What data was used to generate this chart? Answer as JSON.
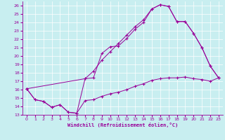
{
  "xlabel": "Windchill (Refroidissement éolien,°C)",
  "bg_color": "#c8eef0",
  "line_color": "#990099",
  "xlim": [
    -0.5,
    23.5
  ],
  "ylim": [
    13,
    26.5
  ],
  "xticks": [
    0,
    1,
    2,
    3,
    4,
    5,
    6,
    7,
    8,
    9,
    10,
    11,
    12,
    13,
    14,
    15,
    16,
    17,
    18,
    19,
    20,
    21,
    22,
    23
  ],
  "yticks": [
    13,
    14,
    15,
    16,
    17,
    18,
    19,
    20,
    21,
    22,
    23,
    24,
    25,
    26
  ],
  "line1_x": [
    0,
    1,
    2,
    3,
    4,
    5,
    6,
    7,
    8,
    9,
    10,
    11,
    12,
    13,
    14,
    15,
    16,
    17,
    18,
    19,
    20,
    21,
    22,
    23
  ],
  "line1_y": [
    16.1,
    14.8,
    14.6,
    13.9,
    14.2,
    13.3,
    13.2,
    17.3,
    17.4,
    20.3,
    21.1,
    21.2,
    22.1,
    23.2,
    24.0,
    25.6,
    26.1,
    25.9,
    24.1,
    24.1,
    22.7,
    21.0,
    18.8,
    17.4
  ],
  "line2_x": [
    0,
    1,
    2,
    3,
    4,
    5,
    6,
    7,
    8,
    9,
    10,
    11,
    12,
    13,
    14,
    15,
    16,
    17,
    18,
    19,
    20,
    21,
    22,
    23
  ],
  "line2_y": [
    16.1,
    14.8,
    14.6,
    13.9,
    14.2,
    13.3,
    13.2,
    14.7,
    14.8,
    15.2,
    15.5,
    15.7,
    16.0,
    16.4,
    16.7,
    17.1,
    17.3,
    17.4,
    17.4,
    17.5,
    17.3,
    17.2,
    17.0,
    17.4
  ],
  "line3_x": [
    0,
    7,
    8,
    9,
    10,
    11,
    12,
    13,
    14,
    15,
    16,
    17,
    18,
    19,
    20,
    21,
    22,
    23
  ],
  "line3_y": [
    16.1,
    17.3,
    18.2,
    19.5,
    20.5,
    21.5,
    22.5,
    23.5,
    24.3,
    25.6,
    26.1,
    25.9,
    24.1,
    24.1,
    22.7,
    21.0,
    18.8,
    17.4
  ]
}
